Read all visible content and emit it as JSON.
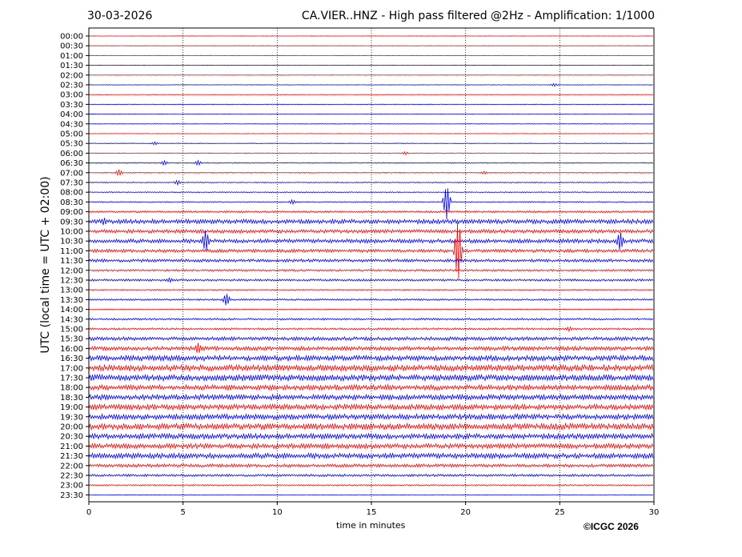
{
  "header": {
    "date": "30-03-2026",
    "title": "CA.VIER..HNZ - High pass filtered @2Hz - Amplification: 1/1000"
  },
  "footer": {
    "copyright": "©ICGC 2026"
  },
  "colors": {
    "red": "#ff0000",
    "blue": "#0000ff",
    "grid": "#000000"
  },
  "chart_data": {
    "type": "line",
    "xlabel": "time in minutes",
    "ylabel": "UTC (local time = UTC + 02:00)",
    "xlim": [
      0,
      30
    ],
    "xticks": [
      0,
      5,
      10,
      15,
      20,
      25,
      30
    ],
    "grid": "vertical dotted at 5-minute intervals",
    "rows": [
      {
        "time": "00:00",
        "color": "red",
        "amp": 0.2
      },
      {
        "time": "00:30",
        "color": "red",
        "amp": 0.2
      },
      {
        "time": "01:00",
        "color": "red",
        "amp": 0.2
      },
      {
        "time": "01:30",
        "color": "blue",
        "amp": 0.2
      },
      {
        "time": "02:00",
        "color": "red",
        "amp": 0.2
      },
      {
        "time": "02:30",
        "color": "blue",
        "amp": 0.3
      },
      {
        "time": "03:00",
        "color": "red",
        "amp": 0.2
      },
      {
        "time": "03:30",
        "color": "blue",
        "amp": 0.3
      },
      {
        "time": "04:00",
        "color": "blue",
        "amp": 0.2
      },
      {
        "time": "04:30",
        "color": "blue",
        "amp": 0.3
      },
      {
        "time": "05:00",
        "color": "red",
        "amp": 0.3
      },
      {
        "time": "05:30",
        "color": "blue",
        "amp": 0.4
      },
      {
        "time": "06:00",
        "color": "red",
        "amp": 0.4
      },
      {
        "time": "06:30",
        "color": "blue",
        "amp": 0.5
      },
      {
        "time": "07:00",
        "color": "red",
        "amp": 0.5
      },
      {
        "time": "07:30",
        "color": "blue",
        "amp": 0.5
      },
      {
        "time": "08:00",
        "color": "blue",
        "amp": 0.5
      },
      {
        "time": "08:30",
        "color": "blue",
        "amp": 0.6
      },
      {
        "time": "09:00",
        "color": "red",
        "amp": 1.0
      },
      {
        "time": "09:30",
        "color": "blue",
        "amp": 2.2
      },
      {
        "time": "10:00",
        "color": "red",
        "amp": 1.8
      },
      {
        "time": "10:30",
        "color": "blue",
        "amp": 2.0
      },
      {
        "time": "11:00",
        "color": "red",
        "amp": 1.6
      },
      {
        "time": "11:30",
        "color": "blue",
        "amp": 1.5
      },
      {
        "time": "12:00",
        "color": "red",
        "amp": 1.0
      },
      {
        "time": "12:30",
        "color": "blue",
        "amp": 1.1
      },
      {
        "time": "13:00",
        "color": "red",
        "amp": 0.6
      },
      {
        "time": "13:30",
        "color": "blue",
        "amp": 0.9
      },
      {
        "time": "14:00",
        "color": "red",
        "amp": 0.5
      },
      {
        "time": "14:30",
        "color": "blue",
        "amp": 1.0
      },
      {
        "time": "15:00",
        "color": "red",
        "amp": 1.0
      },
      {
        "time": "15:30",
        "color": "blue",
        "amp": 1.8
      },
      {
        "time": "16:00",
        "color": "red",
        "amp": 2.0
      },
      {
        "time": "16:30",
        "color": "blue",
        "amp": 2.6
      },
      {
        "time": "17:00",
        "color": "red",
        "amp": 3.0
      },
      {
        "time": "17:30",
        "color": "blue",
        "amp": 3.0
      },
      {
        "time": "18:00",
        "color": "red",
        "amp": 2.6
      },
      {
        "time": "18:30",
        "color": "blue",
        "amp": 2.6
      },
      {
        "time": "19:00",
        "color": "red",
        "amp": 2.6
      },
      {
        "time": "19:30",
        "color": "blue",
        "amp": 2.6
      },
      {
        "time": "20:00",
        "color": "red",
        "amp": 3.0
      },
      {
        "time": "20:30",
        "color": "blue",
        "amp": 2.6
      },
      {
        "time": "21:00",
        "color": "red",
        "amp": 2.4
      },
      {
        "time": "21:30",
        "color": "blue",
        "amp": 2.6
      },
      {
        "time": "22:00",
        "color": "red",
        "amp": 1.6
      },
      {
        "time": "22:30",
        "color": "blue",
        "amp": 1.2
      },
      {
        "time": "23:00",
        "color": "red",
        "amp": 0.6
      },
      {
        "time": "23:30",
        "color": "blue",
        "amp": 0.3
      }
    ],
    "events": [
      {
        "row": "02:30",
        "x": 24.7,
        "amp": 2
      },
      {
        "row": "05:30",
        "x": 3.5,
        "amp": 2
      },
      {
        "row": "06:00",
        "x": 16.8,
        "amp": 2
      },
      {
        "row": "06:30",
        "x": 4.0,
        "amp": 3
      },
      {
        "row": "06:30",
        "x": 5.8,
        "amp": 3
      },
      {
        "row": "07:00",
        "x": 1.6,
        "amp": 4
      },
      {
        "row": "07:00",
        "x": 21.0,
        "amp": 2
      },
      {
        "row": "07:30",
        "x": 4.7,
        "amp": 3
      },
      {
        "row": "08:30",
        "x": 10.8,
        "amp": 3
      },
      {
        "row": "08:30",
        "x": 19.0,
        "amp": 22
      },
      {
        "row": "09:30",
        "x": 0.8,
        "amp": 5
      },
      {
        "row": "10:30",
        "x": 6.2,
        "amp": 14
      },
      {
        "row": "10:30",
        "x": 28.2,
        "amp": 12
      },
      {
        "row": "11:00",
        "x": 19.6,
        "amp": 40
      },
      {
        "row": "12:30",
        "x": 4.3,
        "amp": 3
      },
      {
        "row": "13:30",
        "x": 7.3,
        "amp": 8
      },
      {
        "row": "15:00",
        "x": 25.5,
        "amp": 3
      },
      {
        "row": "16:00",
        "x": 5.8,
        "amp": 7
      }
    ]
  }
}
